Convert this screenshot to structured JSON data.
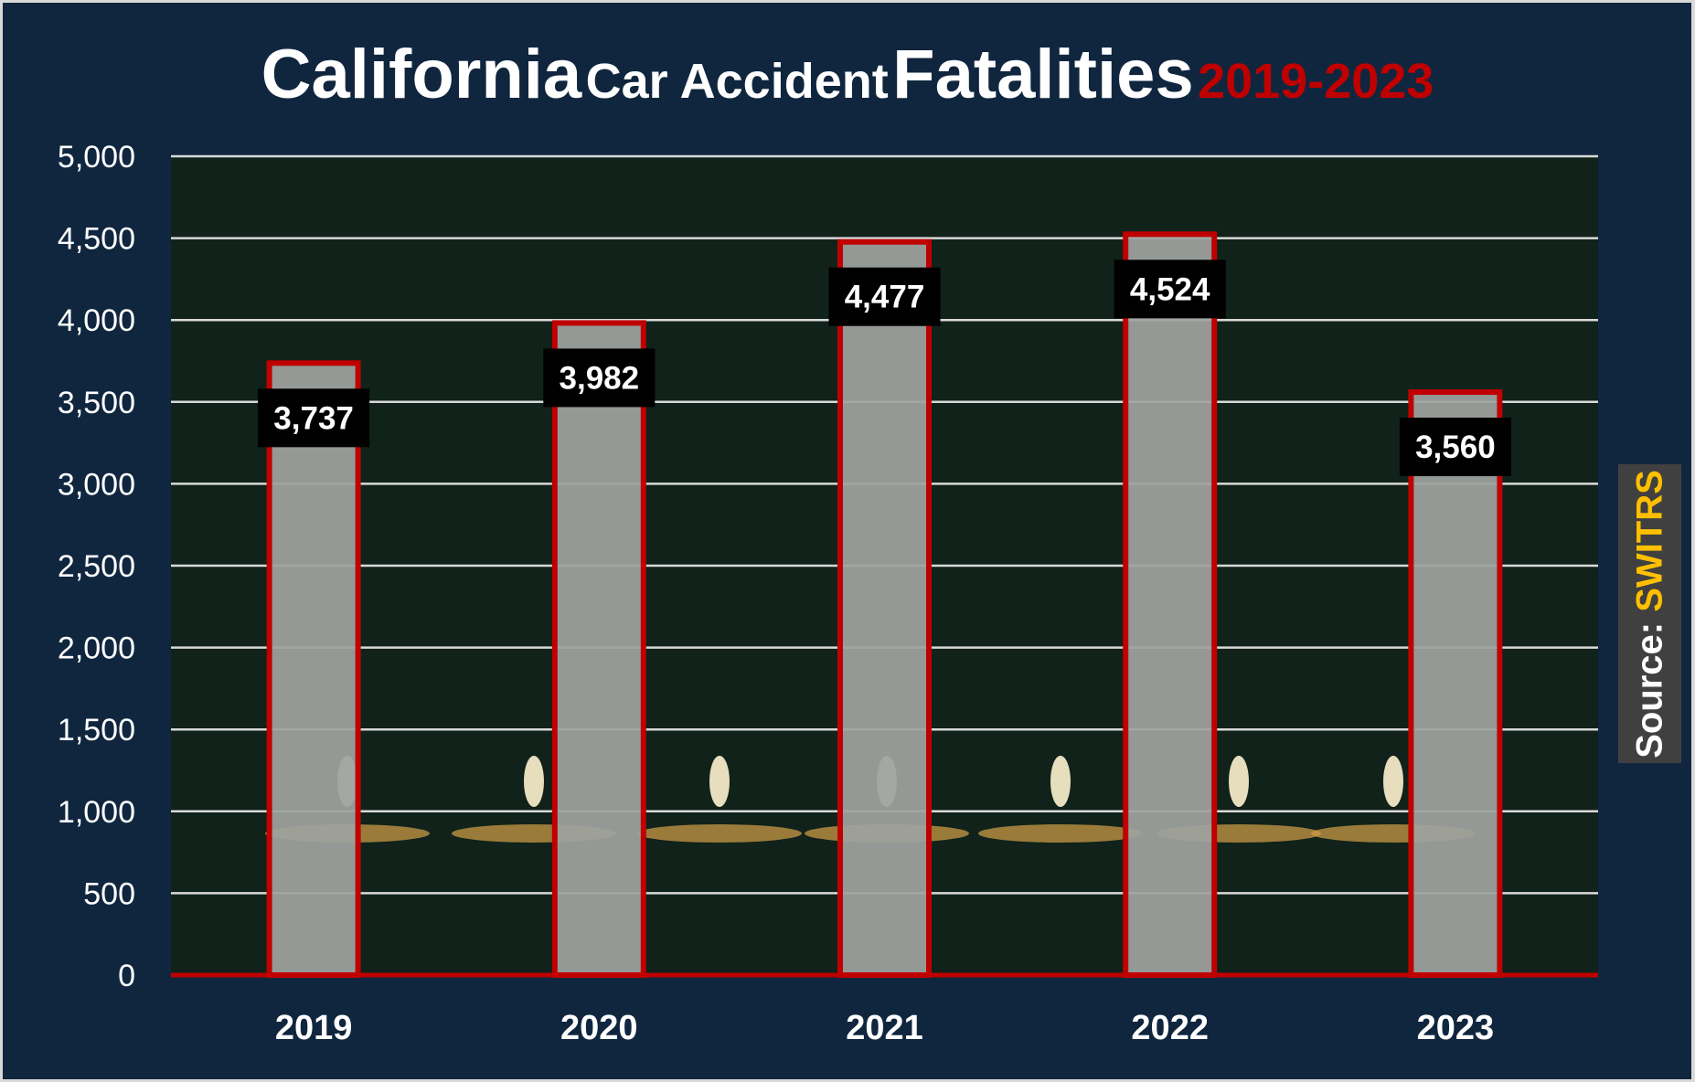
{
  "title": {
    "part1": "California",
    "part2": "Car Accident",
    "part3": "Fatalities",
    "years": "2019-2023"
  },
  "source": {
    "label": "Source:",
    "name": "SWITRS"
  },
  "colors": {
    "background": "#10263f",
    "plot_bg": "#10221a",
    "bar_border": "#c00000",
    "bar_fill": "#9ea39f",
    "accent_year": "#c00000",
    "source_highlight": "#ffc000"
  },
  "chart_data": {
    "type": "bar",
    "title": "California Car Accident Fatalities 2019-2023",
    "categories": [
      "2019",
      "2020",
      "2021",
      "2022",
      "2023"
    ],
    "values": [
      3737,
      3982,
      4477,
      4524,
      3560
    ],
    "value_labels": [
      "3,737",
      "3,982",
      "4,477",
      "4,524",
      "3,560"
    ],
    "xlabel": "",
    "ylabel": "",
    "ylim": [
      0,
      5000
    ],
    "yticks": [
      0,
      500,
      1000,
      1500,
      2000,
      2500,
      3000,
      3500,
      4000,
      4500,
      5000
    ],
    "ytick_labels": [
      "0",
      "500",
      "1,000",
      "1,500",
      "2,000",
      "2,500",
      "3,000",
      "3,500",
      "4,000",
      "4,500",
      "5,000"
    ],
    "grid": true,
    "legend": "none"
  }
}
